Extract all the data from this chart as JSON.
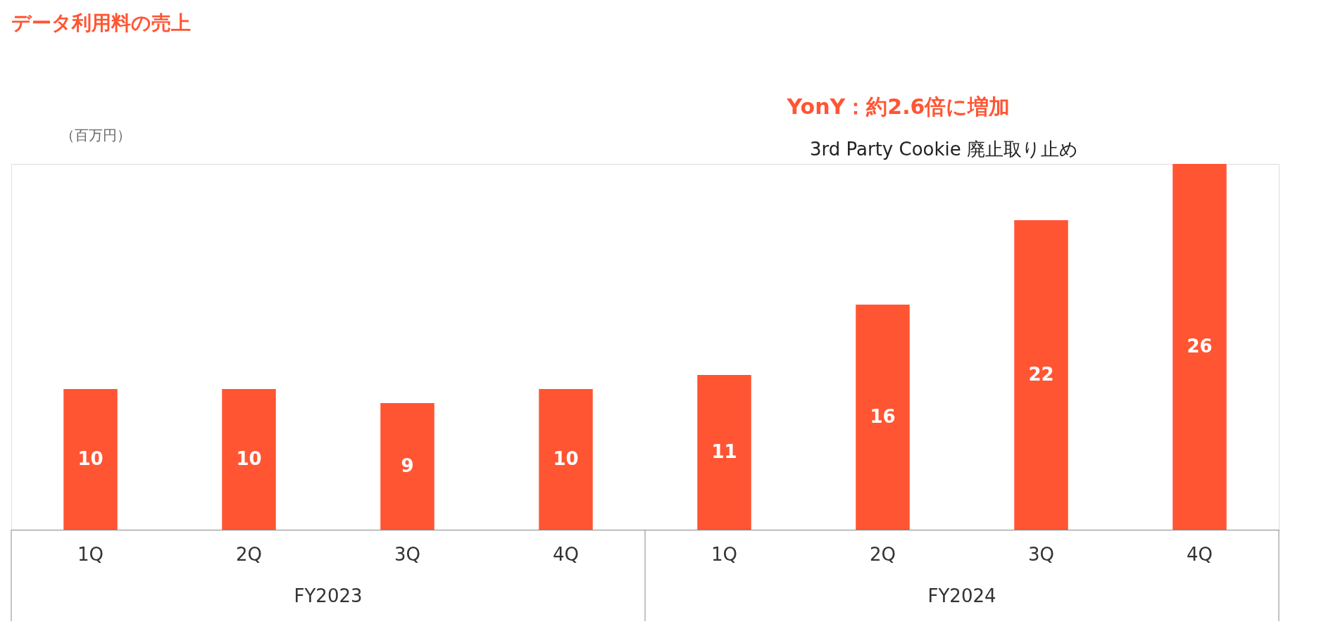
{
  "chart_data": {
    "type": "bar",
    "title": "データ利用料の売上",
    "categories": [
      "1Q",
      "2Q",
      "3Q",
      "4Q",
      "1Q",
      "2Q",
      "3Q",
      "4Q"
    ],
    "values": [
      10,
      10,
      9,
      10,
      11,
      16,
      22,
      26
    ],
    "color": "#ff5533",
    "data_labels": true,
    "grid": false,
    "annotations": [
      "（百万円）",
      "YonY：約2.6倍に増加",
      "3rd Party Cookie 廃止取り止め",
      "FY2023",
      "FY2024"
    ]
  }
}
